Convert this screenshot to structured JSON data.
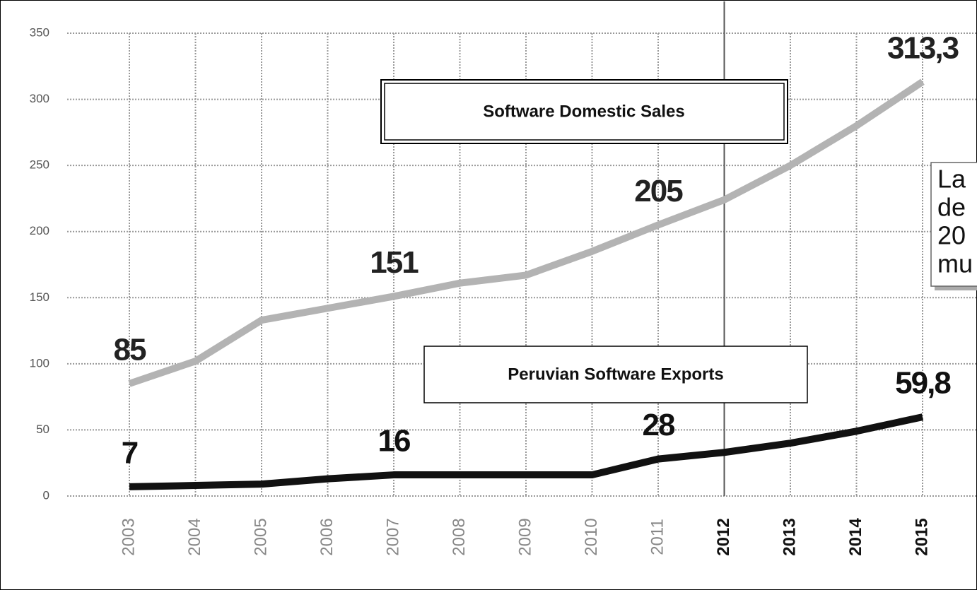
{
  "chart_data": {
    "type": "line",
    "categories": [
      "2003",
      "2004",
      "2005",
      "2006",
      "2007",
      "2008",
      "2009",
      "2010",
      "2011",
      "2012",
      "2013",
      "2014",
      "2015"
    ],
    "series": [
      {
        "name": "Software Domestic Sales",
        "color": "#b3b3b3",
        "values": [
          85,
          102,
          133,
          142,
          151,
          161,
          167,
          185,
          205,
          224,
          250,
          280,
          313.3
        ],
        "value_labels": [
          "85",
          null,
          null,
          null,
          "151",
          null,
          null,
          null,
          "205",
          null,
          null,
          null,
          "313,3"
        ]
      },
      {
        "name": "Peruvian Software Exports",
        "color": "#111111",
        "values": [
          7,
          8,
          9,
          13,
          16,
          16,
          16,
          16,
          28,
          33,
          40,
          49,
          59.8
        ],
        "value_labels": [
          "7",
          null,
          null,
          null,
          "16",
          null,
          null,
          null,
          "28",
          null,
          null,
          null,
          "59,8"
        ]
      }
    ],
    "ylim": [
      0,
      350
    ],
    "yticks": [
      0,
      50,
      100,
      150,
      200,
      250,
      300,
      350
    ],
    "grid": true,
    "annotation_lines": [
      "La",
      "de",
      "20",
      "mu"
    ]
  }
}
